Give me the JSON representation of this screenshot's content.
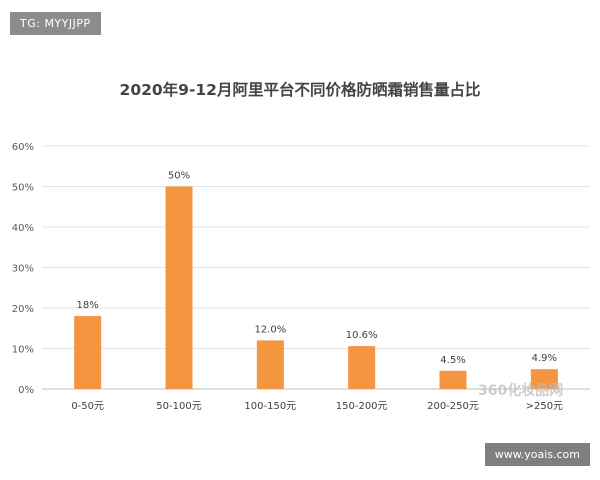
{
  "badge": "TG: MYYJJPP",
  "watermark_site": "www.yoais.com",
  "watermark_logo": "360化妆品网",
  "chart_data": {
    "type": "bar",
    "title": "2020年9-12月阿里平台不同价格防晒霜销售量占比",
    "xlabel": "",
    "ylabel": "",
    "categories": [
      "0-50元",
      "50-100元",
      "100-150元",
      "150-200元",
      "200-250元",
      ">250元"
    ],
    "values": [
      18,
      50,
      12.0,
      10.6,
      4.5,
      4.9
    ],
    "data_labels": [
      "18%",
      "50%",
      "12.0%",
      "10.6%",
      "4.5%",
      "4.9%"
    ],
    "ylim": [
      0,
      60
    ],
    "yticks": [
      0,
      10,
      20,
      30,
      40,
      50,
      60
    ],
    "ytick_labels": [
      "0%",
      "10%",
      "20%",
      "30%",
      "40%",
      "50%",
      "60%"
    ],
    "grid": true,
    "bar_color": "#f4963f",
    "grid_color": "#e3e3e3"
  }
}
